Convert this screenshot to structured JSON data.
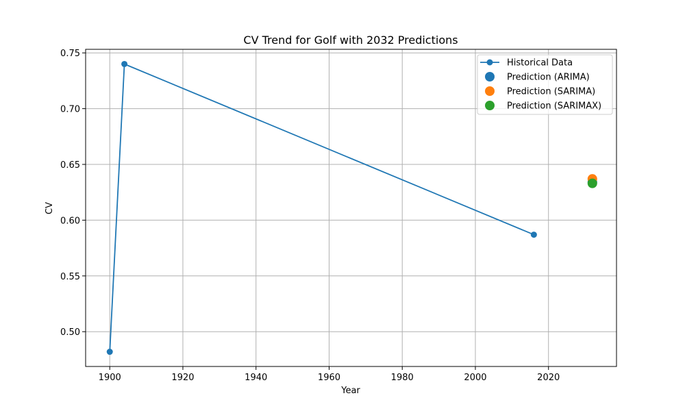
{
  "chart_data": {
    "type": "line",
    "title": "CV Trend for Golf with 2032 Predictions",
    "xlabel": "Year",
    "ylabel": "CV",
    "xlim": [
      1893.4,
      2038.6
    ],
    "ylim": [
      0.4688,
      0.7532
    ],
    "x_ticks": [
      1900,
      1920,
      1940,
      1960,
      1980,
      2000,
      2020
    ],
    "x_tick_labels": [
      "1900",
      "1920",
      "1940",
      "1960",
      "1980",
      "2000",
      "2020"
    ],
    "y_ticks": [
      0.5,
      0.55,
      0.6,
      0.65,
      0.7,
      0.75
    ],
    "y_tick_labels": [
      "0.50",
      "0.55",
      "0.60",
      "0.65",
      "0.70",
      "0.75"
    ],
    "grid": true,
    "legend_position": "top-right",
    "series": [
      {
        "name": "Historical Data",
        "kind": "line-marker",
        "color": "#1f77b4",
        "x": [
          1900,
          1904,
          2016
        ],
        "y": [
          0.482,
          0.74,
          0.587
        ]
      },
      {
        "name": "Prediction (ARIMA)",
        "kind": "scatter",
        "color": "#1f77b4",
        "x": [
          2032
        ],
        "y": [
          0.634
        ]
      },
      {
        "name": "Prediction (SARIMA)",
        "kind": "scatter",
        "color": "#ff7f0e",
        "x": [
          2032
        ],
        "y": [
          0.637
        ]
      },
      {
        "name": "Prediction (SARIMAX)",
        "kind": "scatter",
        "color": "#2ca02c",
        "x": [
          2032
        ],
        "y": [
          0.633
        ]
      }
    ]
  }
}
